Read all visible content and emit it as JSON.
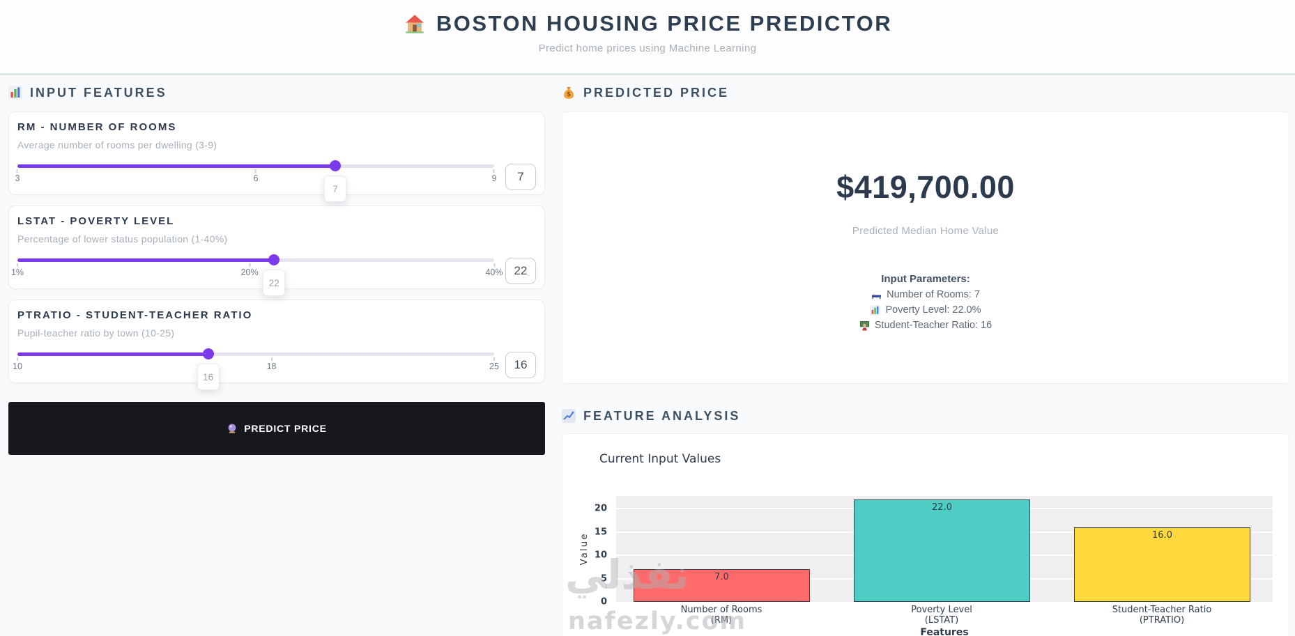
{
  "header": {
    "icon": "house-icon",
    "title": "BOSTON HOUSING PRICE PREDICTOR",
    "subtitle": "Predict home prices using Machine Learning"
  },
  "inputs": {
    "icon": "bar-chart-icon",
    "section_title": "INPUT FEATURES",
    "sliders": [
      {
        "title": "RM - NUMBER OF ROOMS",
        "description": "Average number of rooms per dwelling (3-9)",
        "min": 3,
        "max": 9,
        "value": 7,
        "ticks": [
          {
            "label": "3",
            "pos": 0
          },
          {
            "label": "6",
            "pos": 0.5
          },
          {
            "label": "9",
            "pos": 1
          }
        ],
        "tooltip": "7",
        "input_value": "7"
      },
      {
        "title": "LSTAT - POVERTY LEVEL",
        "description": "Percentage of lower status population (1-40%)",
        "min": 1,
        "max": 40,
        "value": 22,
        "ticks": [
          {
            "label": "1%",
            "pos": 0
          },
          {
            "label": "20%",
            "pos": 0.487
          },
          {
            "label": "40%",
            "pos": 1
          }
        ],
        "tooltip": "22",
        "input_value": "22"
      },
      {
        "title": "PTRATIO - STUDENT-TEACHER RATIO",
        "description": "Pupil-teacher ratio by town (10-25)",
        "min": 10,
        "max": 25,
        "value": 16,
        "ticks": [
          {
            "label": "10",
            "pos": 0
          },
          {
            "label": "18",
            "pos": 0.533
          },
          {
            "label": "25",
            "pos": 1
          }
        ],
        "tooltip": "16",
        "input_value": "16"
      }
    ],
    "predict_button": {
      "icon": "crystal-ball-icon",
      "label": "PREDICT PRICE"
    }
  },
  "prediction": {
    "icon": "money-bag-icon",
    "section_title": "PREDICTED PRICE",
    "price": "$419,700.00",
    "caption": "Predicted Median Home Value",
    "params_title": "Input Parameters:",
    "params": [
      {
        "icon": "bed-icon",
        "text": "Number of Rooms: 7"
      },
      {
        "icon": "bar-chart-icon",
        "text": "Poverty Level: 22.0%"
      },
      {
        "icon": "teacher-icon",
        "text": "Student-Teacher Ratio: 16"
      }
    ]
  },
  "analysis": {
    "icon": "chart-increasing-icon",
    "section_title": "FEATURE ANALYSIS"
  },
  "chart_data": {
    "type": "bar",
    "title": "Current Input Values",
    "categories": [
      [
        "Number of Rooms",
        "(RM)"
      ],
      [
        "Poverty Level",
        "(LSTAT)"
      ],
      [
        "Student-Teacher Ratio",
        "(PTRATIO)"
      ]
    ],
    "values": [
      7.0,
      22.0,
      16.0
    ],
    "bar_labels": [
      "7.0",
      "22.0",
      "16.0"
    ],
    "bar_colors": [
      "#ff6b6b",
      "#4ecdc4",
      "#ffd93d"
    ],
    "bar_edge_color": "#344251",
    "xlabel": "Features",
    "ylabel": "Value",
    "yticks": [
      0,
      5,
      10,
      15,
      20
    ],
    "ylim": [
      0,
      22.75
    ],
    "grid": true,
    "legend": false,
    "plot_background": "#efeff1"
  },
  "watermark": {
    "line1": "نفذلي",
    "line2": "nafezly.com"
  },
  "colors": {
    "accent_purple": "#7c3aed",
    "button_bg": "#17181d",
    "divider_mint": "#d7ebe2",
    "title_dark": "#2d3e50"
  }
}
